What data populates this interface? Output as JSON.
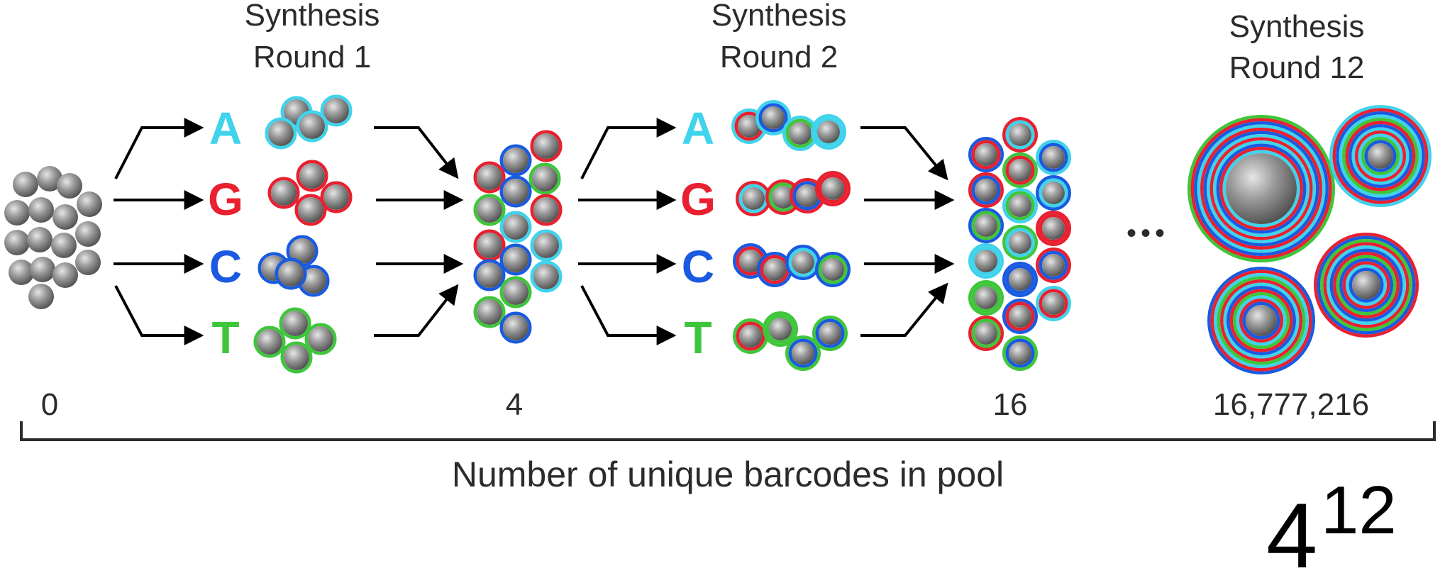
{
  "rounds": [
    {
      "title_line1": "Synthesis",
      "title_line2": "Round 1"
    },
    {
      "title_line1": "Synthesis",
      "title_line2": "Round 2"
    },
    {
      "title_line1": "Synthesis",
      "title_line2": "Round 12"
    }
  ],
  "bases": [
    {
      "letter": "A",
      "color": "#3fd3ec"
    },
    {
      "letter": "G",
      "color": "#e8202f"
    },
    {
      "letter": "C",
      "color": "#1a5ae0"
    },
    {
      "letter": "T",
      "color": "#3ec63a"
    }
  ],
  "counts": [
    "0",
    "4",
    "16",
    "16,777,216"
  ],
  "axis_label": "Number of unique barcodes in pool",
  "ellipsis": "•••",
  "formula": {
    "base": "4",
    "exponent": "12"
  },
  "colors": {
    "bead": "#8a8a8a",
    "text": "#2b2b2b",
    "arrow": "#000000"
  }
}
